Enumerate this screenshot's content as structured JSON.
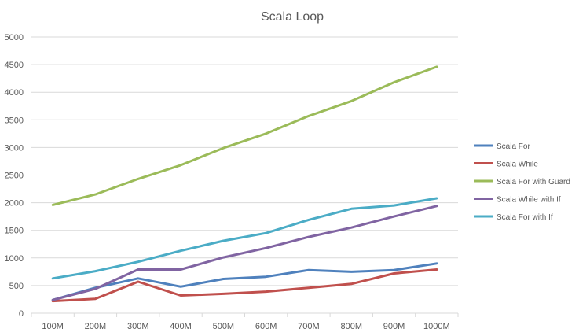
{
  "chart_data": {
    "type": "line",
    "title": "Scala Loop",
    "xlabel": "",
    "ylabel": "",
    "categories": [
      "100M",
      "200M",
      "300M",
      "400M",
      "500M",
      "600M",
      "700M",
      "800M",
      "900M",
      "1000M"
    ],
    "ylim": [
      0,
      5000
    ],
    "yticks": [
      0,
      500,
      1000,
      1500,
      2000,
      2500,
      3000,
      3500,
      4000,
      4500,
      5000
    ],
    "grid": true,
    "legend_position": "right",
    "series": [
      {
        "name": "Scala For",
        "color": "#4F81BD",
        "values": [
          240,
          460,
          630,
          480,
          620,
          660,
          780,
          750,
          780,
          900
        ]
      },
      {
        "name": "Scala While",
        "color": "#C0504D",
        "values": [
          220,
          260,
          570,
          320,
          350,
          390,
          460,
          530,
          720,
          790
        ]
      },
      {
        "name": "Scala For with Guard",
        "color": "#9BBB59",
        "values": [
          1960,
          2150,
          2430,
          2680,
          2990,
          3250,
          3570,
          3840,
          4180,
          4460
        ]
      },
      {
        "name": "Scala While with If",
        "color": "#8064A2",
        "values": [
          240,
          440,
          790,
          790,
          1010,
          1180,
          1380,
          1550,
          1750,
          1940
        ]
      },
      {
        "name": "Scala For with If",
        "color": "#4BACC6",
        "values": [
          630,
          760,
          930,
          1130,
          1310,
          1450,
          1690,
          1890,
          1950,
          2080
        ]
      }
    ]
  }
}
